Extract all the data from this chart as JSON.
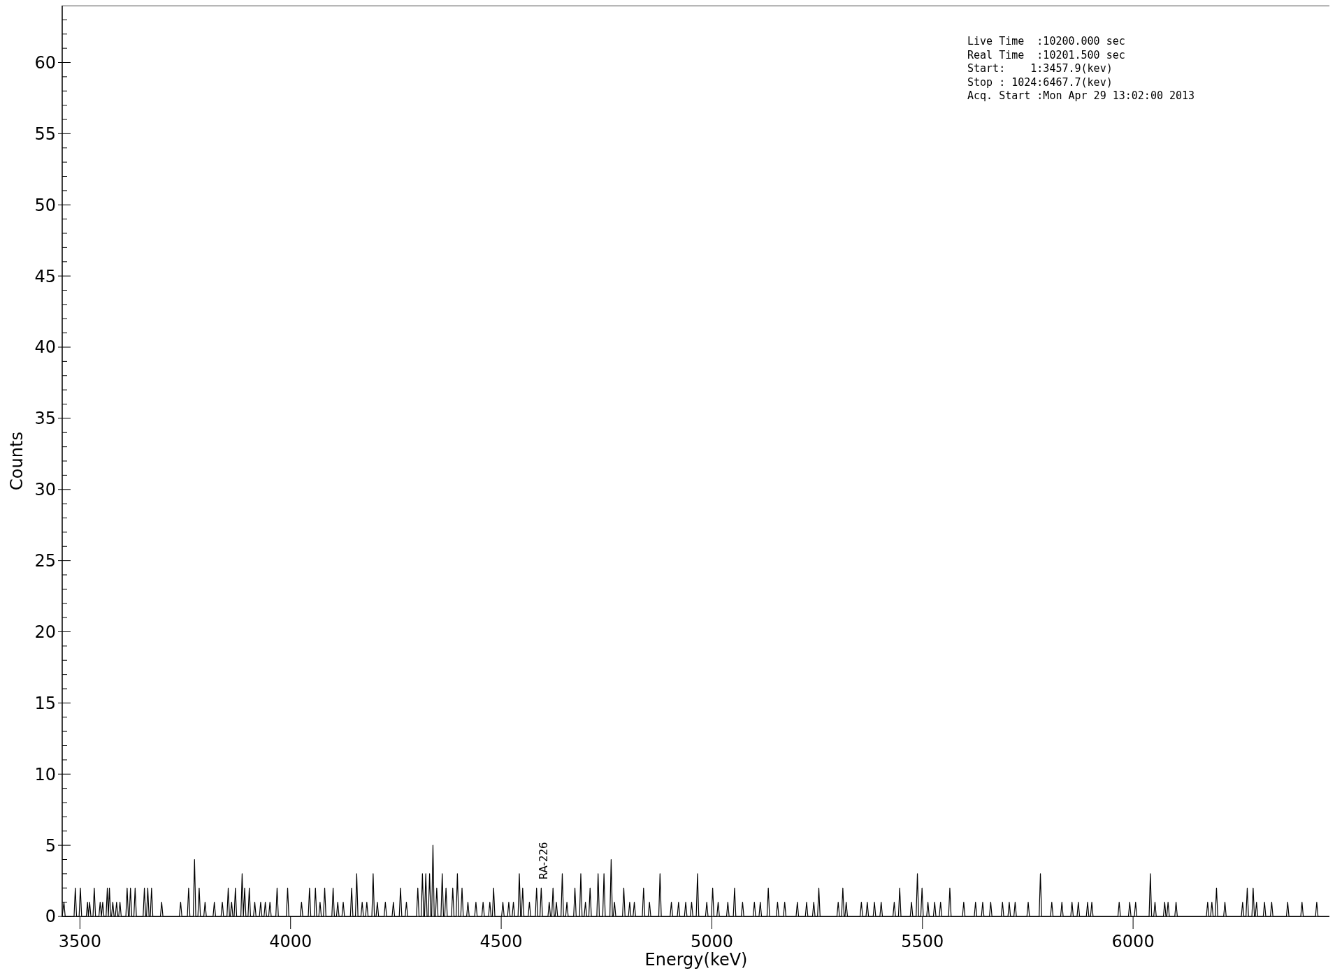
{
  "chart_data": {
    "type": "line",
    "xlabel": "Energy(keV)",
    "ylabel": "Counts",
    "color": "#000000",
    "xlim": [
      3457.9,
      6467.7
    ],
    "xticks": [
      3500,
      4000,
      4500,
      5000,
      5500,
      6000
    ],
    "ylim": [
      0,
      64
    ],
    "yticks": [
      0,
      {
        "value": 1,
        "label": null
      },
      {
        "value": 2,
        "label": null
      },
      {
        "value": 3,
        "label": null
      },
      {
        "value": 4,
        "label": null
      },
      5,
      {
        "value": 6,
        "label": null
      },
      {
        "value": 7,
        "label": null
      },
      {
        "value": 8,
        "label": null
      },
      {
        "value": 9,
        "label": null
      },
      10,
      {
        "value": 11,
        "label": null
      },
      {
        "value": 12,
        "label": null
      },
      {
        "value": 13,
        "label": null
      },
      {
        "value": 14,
        "label": null
      },
      15,
      {
        "value": 16,
        "label": null
      },
      {
        "value": 17,
        "label": null
      },
      {
        "value": 18,
        "label": null
      },
      {
        "value": 19,
        "label": null
      },
      20,
      {
        "value": 21,
        "label": null
      },
      {
        "value": 22,
        "label": null
      },
      {
        "value": 23,
        "label": null
      },
      {
        "value": 24,
        "label": null
      },
      25,
      {
        "value": 26,
        "label": null
      },
      {
        "value": 27,
        "label": null
      },
      {
        "value": 28,
        "label": null
      },
      {
        "value": 29,
        "label": null
      },
      30,
      {
        "value": 31,
        "label": null
      },
      {
        "value": 32,
        "label": null
      },
      {
        "value": 33,
        "label": null
      },
      {
        "value": 34,
        "label": null
      },
      35,
      {
        "value": 36,
        "label": null
      },
      {
        "value": 37,
        "label": null
      },
      {
        "value": 38,
        "label": null
      },
      {
        "value": 39,
        "label": null
      },
      40,
      {
        "value": 41,
        "label": null
      },
      {
        "value": 42,
        "label": null
      },
      {
        "value": 43,
        "label": null
      },
      {
        "value": 44,
        "label": null
      },
      45,
      {
        "value": 46,
        "label": null
      },
      {
        "value": 47,
        "label": null
      },
      {
        "value": 48,
        "label": null
      },
      {
        "value": 49,
        "label": null
      },
      50,
      {
        "value": 51,
        "label": null
      },
      {
        "value": 52,
        "label": null
      },
      {
        "value": 53,
        "label": null
      },
      {
        "value": 54,
        "label": null
      },
      55,
      {
        "value": 56,
        "label": null
      },
      {
        "value": 57,
        "label": null
      },
      {
        "value": 58,
        "label": null
      },
      {
        "value": 59,
        "label": null
      },
      60,
      {
        "value": 61,
        "label": null
      },
      {
        "value": 62,
        "label": null
      },
      {
        "value": 63,
        "label": null
      }
    ],
    "annotations": [
      "Live Time  :10200.000 sec",
      "Real Time  :10201.500 sec",
      "Start:    1:3457.9(kev)",
      "Stop : 1024:6467.7(kev)",
      "Acq. Start :Mon Apr 29 13:02:00 2013",
      {
        "text": "RA-226",
        "x": 4601,
        "y": 2
      }
    ],
    "x": [
      3457.9,
      3462,
      3465,
      3486,
      3489,
      3492,
      3498,
      3501,
      3504,
      3515,
      3518,
      3520,
      3523,
      3526,
      3531,
      3534,
      3537,
      3545,
      3548,
      3551,
      3554,
      3557,
      3562,
      3565,
      3567.5,
      3570,
      3573,
      3575,
      3578,
      3581,
      3584,
      3587,
      3590,
      3592,
      3595,
      3598,
      3609,
      3612,
      3615,
      3617,
      3620,
      3623,
      3628,
      3631,
      3634,
      3650,
      3653,
      3656,
      3658,
      3661,
      3664,
      3667,
      3670,
      3673,
      3691,
      3694,
      3697,
      3736,
      3739,
      3742,
      3755,
      3758,
      3761,
      3769,
      3772,
      3775,
      3780,
      3783,
      3786,
      3794,
      3797,
      3800,
      3816,
      3819,
      3822,
      3835,
      3838,
      3841,
      3849,
      3852,
      3855,
      3857,
      3860,
      3863,
      3866,
      3869,
      3872,
      3882,
      3885,
      3888,
      3891,
      3894,
      3899,
      3902,
      3905,
      3912,
      3915,
      3918,
      3926,
      3929,
      3932,
      3937,
      3940,
      3943,
      3948,
      3951,
      3954,
      3965,
      3968,
      3971,
      3990,
      3993,
      3996,
      4023,
      4026,
      4029,
      4042,
      4045,
      4048,
      4056,
      4059,
      4062,
      4067,
      4070,
      4073,
      4078,
      4081,
      4084,
      4098,
      4101,
      4104,
      4109,
      4112,
      4115,
      4122,
      4125,
      4128,
      4142,
      4145,
      4148,
      4154,
      4157,
      4160,
      4167,
      4170,
      4173,
      4178,
      4181,
      4184,
      4193,
      4196,
      4199,
      4203,
      4206,
      4209,
      4222,
      4225,
      4228,
      4241,
      4244,
      4247,
      4258,
      4261,
      4264,
      4272,
      4275,
      4278,
      4299,
      4302,
      4305,
      4310,
      4313,
      4316,
      4318,
      4321,
      4324,
      4327,
      4330,
      4333,
      4335,
      4338,
      4341,
      4344,
      4347,
      4350,
      4357,
      4360,
      4363,
      4366,
      4369,
      4372,
      4382,
      4385,
      4388,
      4393,
      4396,
      4399,
      4404,
      4407,
      4410,
      4418,
      4421,
      4424,
      4437,
      4440,
      4443,
      4454,
      4457,
      4460,
      4470,
      4473,
      4476,
      4479,
      4482,
      4485,
      4501,
      4504,
      4507,
      4515,
      4518,
      4521,
      4526,
      4529,
      4532,
      4540,
      4543,
      4546,
      4548,
      4551,
      4554,
      4564,
      4567,
      4570,
      4581,
      4584,
      4587,
      4592,
      4595,
      4598,
      4611,
      4614,
      4617,
      4620,
      4623,
      4626,
      4628,
      4631,
      4634,
      4642,
      4645,
      4648,
      4653,
      4656,
      4659,
      4672,
      4675,
      4678,
      4686,
      4689,
      4692,
      4697,
      4700,
      4703,
      4708,
      4711,
      4714,
      4727,
      4730,
      4733,
      4741,
      4744,
      4747,
      4758,
      4761,
      4764,
      4766,
      4769,
      4772,
      4788,
      4791,
      4794,
      4802,
      4805,
      4808,
      4813,
      4816,
      4819,
      4835,
      4838,
      4841,
      4849,
      4852,
      4855,
      4874,
      4877,
      4880,
      4901,
      4904,
      4907,
      4918,
      4921,
      4924,
      4935,
      4938,
      4941,
      4949,
      4952,
      4955,
      4963,
      4966,
      4969,
      4985,
      4988,
      4991,
      4999,
      5002,
      5005,
      5012,
      5015,
      5018,
      5035,
      5038,
      5041,
      5051,
      5054,
      5057,
      5070,
      5073,
      5076,
      5098,
      5101,
      5104,
      5112,
      5115,
      5118,
      5131,
      5134,
      5137,
      5153,
      5156,
      5159,
      5170,
      5173,
      5176,
      5200,
      5203,
      5206,
      5222,
      5225,
      5228,
      5239,
      5242,
      5245,
      5251,
      5254,
      5257,
      5297,
      5300,
      5303,
      5308,
      5311,
      5314,
      5316,
      5319,
      5322,
      5352,
      5355,
      5358,
      5366,
      5369,
      5372,
      5383,
      5386,
      5389,
      5399,
      5402,
      5405,
      5430,
      5433,
      5436,
      5443,
      5446,
      5449,
      5471,
      5474,
      5477,
      5485,
      5488,
      5491,
      5496,
      5499,
      5502,
      5510,
      5513,
      5516,
      5526,
      5529,
      5532,
      5540,
      5543,
      5546,
      5562,
      5565,
      5568,
      5595,
      5598,
      5601,
      5623,
      5626,
      5629,
      5640,
      5643,
      5646,
      5659,
      5662,
      5665,
      5687,
      5690,
      5693,
      5703,
      5706,
      5709,
      5717,
      5720,
      5723,
      5748,
      5751,
      5754,
      5777,
      5780,
      5783,
      5804,
      5807,
      5810,
      5828,
      5831,
      5834,
      5852,
      5855,
      5858,
      5867,
      5870,
      5873,
      5889,
      5892,
      5895,
      5899,
      5902,
      5905,
      5964,
      5967,
      5970,
      5989,
      5992,
      5995,
      6003,
      6006,
      6009,
      6038,
      6041,
      6044,
      6049,
      6052,
      6055,
      6072,
      6075,
      6078,
      6080,
      6083,
      6086,
      6099,
      6102,
      6105,
      6174,
      6177,
      6180,
      6184,
      6187,
      6190,
      6195,
      6198,
      6201,
      6215,
      6218,
      6221,
      6257,
      6260,
      6263,
      6268,
      6271,
      6274,
      6282,
      6285,
      6288,
      6290,
      6293,
      6296,
      6309,
      6312,
      6315,
      6326,
      6329,
      6332,
      6364,
      6367,
      6370,
      6398,
      6401,
      6404,
      6433,
      6436,
      6439,
      6467.7
    ],
    "values": [
      0,
      1,
      0,
      0,
      2,
      0,
      0,
      2,
      0,
      0,
      1,
      0,
      1,
      0,
      0,
      2,
      0,
      0,
      1,
      0,
      1,
      0,
      0,
      2,
      0,
      2,
      0,
      0,
      1,
      0,
      0,
      1,
      0,
      0,
      1,
      0,
      0,
      2,
      0,
      0,
      2,
      0,
      0,
      2,
      0,
      0,
      2,
      0,
      0,
      2,
      0,
      0,
      2,
      0,
      0,
      1,
      0,
      0,
      1,
      0,
      0,
      2,
      0,
      0,
      4,
      0,
      0,
      2,
      0,
      0,
      1,
      0,
      0,
      1,
      0,
      0,
      1,
      0,
      0,
      2,
      0,
      0,
      1,
      0,
      0,
      2,
      0,
      0,
      3,
      0,
      2,
      0,
      0,
      2,
      0,
      0,
      1,
      0,
      0,
      1,
      0,
      0,
      1,
      0,
      0,
      1,
      0,
      0,
      2,
      0,
      0,
      2,
      0,
      0,
      1,
      0,
      0,
      2,
      0,
      0,
      2,
      0,
      0,
      1,
      0,
      0,
      2,
      0,
      0,
      2,
      0,
      0,
      1,
      0,
      0,
      1,
      0,
      0,
      2,
      0,
      0,
      3,
      0,
      0,
      1,
      0,
      0,
      1,
      0,
      0,
      3,
      0,
      0,
      1,
      0,
      0,
      1,
      0,
      0,
      1,
      0,
      0,
      2,
      0,
      0,
      1,
      0,
      0,
      2,
      0,
      0,
      3,
      0,
      0,
      3,
      0,
      0,
      3,
      0,
      0,
      5,
      0,
      0,
      2,
      0,
      0,
      3,
      0,
      0,
      2,
      0,
      0,
      2,
      0,
      0,
      3,
      0,
      0,
      2,
      0,
      0,
      1,
      0,
      0,
      1,
      0,
      0,
      1,
      0,
      0,
      1,
      0,
      0,
      2,
      0,
      0,
      1,
      0,
      0,
      1,
      0,
      0,
      1,
      0,
      0,
      3,
      0,
      0,
      2,
      0,
      0,
      1,
      0,
      0,
      2,
      0,
      0,
      2,
      0,
      0,
      1,
      0,
      0,
      2,
      0,
      0,
      1,
      0,
      0,
      3,
      0,
      0,
      1,
      0,
      0,
      2,
      0,
      0,
      3,
      0,
      0,
      1,
      0,
      0,
      2,
      0,
      0,
      3,
      0,
      0,
      3,
      0,
      0,
      4,
      0,
      0,
      1,
      0,
      0,
      2,
      0,
      0,
      1,
      0,
      0,
      1,
      0,
      0,
      2,
      0,
      0,
      1,
      0,
      0,
      3,
      0,
      0,
      1,
      0,
      0,
      1,
      0,
      0,
      1,
      0,
      0,
      1,
      0,
      0,
      3,
      0,
      0,
      1,
      0,
      0,
      2,
      0,
      0,
      1,
      0,
      0,
      1,
      0,
      0,
      2,
      0,
      0,
      1,
      0,
      0,
      1,
      0,
      0,
      1,
      0,
      0,
      2,
      0,
      0,
      1,
      0,
      0,
      1,
      0,
      0,
      1,
      0,
      0,
      1,
      0,
      0,
      1,
      0,
      0,
      2,
      0,
      0,
      1,
      0,
      0,
      2,
      0,
      0,
      1,
      0,
      0,
      1,
      0,
      0,
      1,
      0,
      0,
      1,
      0,
      0,
      1,
      0,
      0,
      1,
      0,
      0,
      2,
      0,
      0,
      1,
      0,
      0,
      3,
      0,
      0,
      2,
      0,
      0,
      1,
      0,
      0,
      1,
      0,
      0,
      1,
      0,
      0,
      2,
      0,
      0,
      1,
      0,
      0,
      1,
      0,
      0,
      1,
      0,
      0,
      1,
      0,
      0,
      1,
      0,
      0,
      1,
      0,
      0,
      1,
      0,
      0,
      1,
      0,
      0,
      3,
      0,
      0,
      1,
      0,
      0,
      1,
      0,
      0,
      1,
      0,
      0,
      1,
      0,
      0,
      1,
      0,
      0,
      1,
      0,
      0,
      1,
      0,
      0,
      1,
      0,
      0,
      1,
      0,
      0,
      3,
      0,
      0,
      1,
      0,
      0,
      1,
      0,
      0,
      1,
      0,
      0,
      1,
      0,
      0,
      1,
      0,
      0,
      1,
      0,
      0,
      2,
      0,
      0,
      1,
      0,
      0,
      1,
      0,
      0,
      2,
      0,
      0,
      2,
      0,
      0,
      1,
      0,
      0,
      1,
      0,
      0,
      1,
      0,
      0,
      1,
      0,
      0,
      1,
      0,
      0,
      1,
      0,
      0
    ]
  }
}
